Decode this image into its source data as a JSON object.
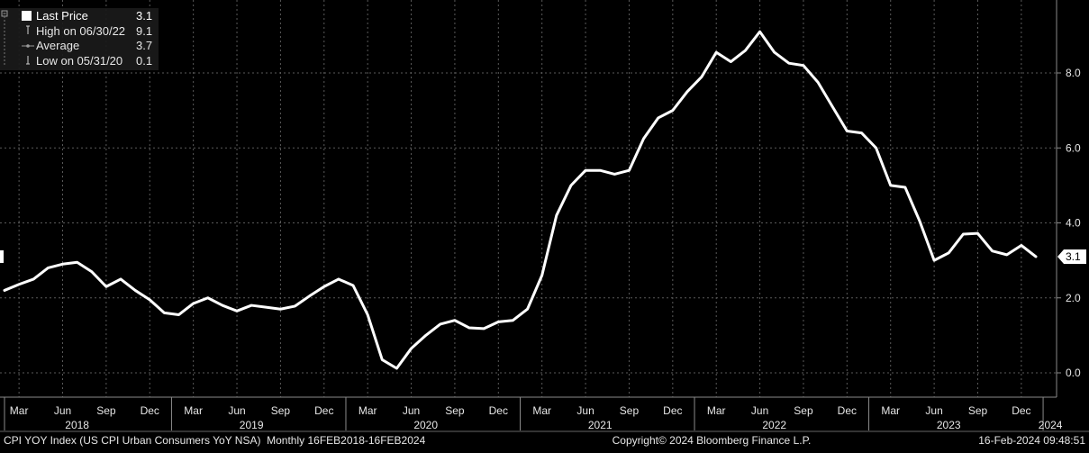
{
  "legend": {
    "items": [
      {
        "label": "Last Price",
        "value": "3.1",
        "icon": "filled-square-icon"
      },
      {
        "label": "High on 06/30/22",
        "value": "9.1",
        "icon": "high-marker-icon"
      },
      {
        "label": "Average",
        "value": "3.7",
        "icon": "average-marker-icon"
      },
      {
        "label": "Low on 05/31/20",
        "value": "0.1",
        "icon": "low-marker-icon"
      }
    ]
  },
  "last_value_tag": "3.1",
  "footer": {
    "left": "CPI YOY Index (US CPI Urban Consumers YoY NSA)  Monthly 16FEB2018-16FEB2024",
    "center": "Copyright© 2024 Bloomberg Finance L.P.",
    "right": "16-Feb-2024 09:48:51"
  },
  "colors": {
    "background": "#000000",
    "line": "#ffffff",
    "grid": "#5a5a5a",
    "text": "#e6e6e6"
  },
  "chart_data": {
    "type": "line",
    "title": "",
    "xlabel": "",
    "ylabel": "",
    "ylim": [
      -0.6,
      9.8
    ],
    "yticks": [
      0,
      2,
      4,
      6,
      8
    ],
    "ytick_labels": [
      "0.0",
      "2.0",
      "4.0",
      "6.0",
      "8.0"
    ],
    "grid": true,
    "legend_position": "top-left",
    "y_axis_side": "right",
    "x_month_labels": [
      {
        "label": "Mar",
        "index": 1
      },
      {
        "label": "Jun",
        "index": 4
      },
      {
        "label": "Sep",
        "index": 7
      },
      {
        "label": "Dec",
        "index": 10
      },
      {
        "label": "Mar",
        "index": 13
      },
      {
        "label": "Jun",
        "index": 16
      },
      {
        "label": "Sep",
        "index": 19
      },
      {
        "label": "Dec",
        "index": 22
      },
      {
        "label": "Mar",
        "index": 25
      },
      {
        "label": "Jun",
        "index": 28
      },
      {
        "label": "Sep",
        "index": 31
      },
      {
        "label": "Dec",
        "index": 34
      },
      {
        "label": "Mar",
        "index": 37
      },
      {
        "label": "Jun",
        "index": 40
      },
      {
        "label": "Sep",
        "index": 43
      },
      {
        "label": "Dec",
        "index": 46
      },
      {
        "label": "Mar",
        "index": 49
      },
      {
        "label": "Jun",
        "index": 52
      },
      {
        "label": "Sep",
        "index": 55
      },
      {
        "label": "Dec",
        "index": 58
      },
      {
        "label": "Mar",
        "index": 61
      },
      {
        "label": "Jun",
        "index": 64
      },
      {
        "label": "Sep",
        "index": 67
      },
      {
        "label": "Dec",
        "index": 70
      }
    ],
    "x_year_labels": [
      {
        "label": "2018",
        "index": 5
      },
      {
        "label": "2019",
        "index": 17
      },
      {
        "label": "2020",
        "index": 29
      },
      {
        "label": "2021",
        "index": 41
      },
      {
        "label": "2022",
        "index": 53
      },
      {
        "label": "2023",
        "index": 65
      },
      {
        "label": "2024",
        "index": 72
      }
    ],
    "year_separators": [
      0,
      11.5,
      23.5,
      35.5,
      47.5,
      59.5,
      71.5
    ],
    "series": [
      {
        "values": [
          2.2,
          2.36,
          2.5,
          2.8,
          2.9,
          2.95,
          2.7,
          2.3,
          2.5,
          2.2,
          1.95,
          1.6,
          1.55,
          1.85,
          2.0,
          1.8,
          1.65,
          1.8,
          1.75,
          1.7,
          1.78,
          2.05,
          2.3,
          2.5,
          2.33,
          1.55,
          0.35,
          0.12,
          0.65,
          1.0,
          1.3,
          1.4,
          1.2,
          1.18,
          1.36,
          1.4,
          1.7,
          2.6,
          4.2,
          5.0,
          5.4,
          5.4,
          5.3,
          5.4,
          6.25,
          6.8,
          7.0,
          7.5,
          7.9,
          8.55,
          8.3,
          8.6,
          9.1,
          8.55,
          8.26,
          8.2,
          7.75,
          7.1,
          6.45,
          6.4,
          6.0,
          5.0,
          4.95,
          4.05,
          3.0,
          3.2,
          3.7,
          3.72,
          3.25,
          3.15,
          3.4,
          3.1
        ]
      }
    ]
  }
}
